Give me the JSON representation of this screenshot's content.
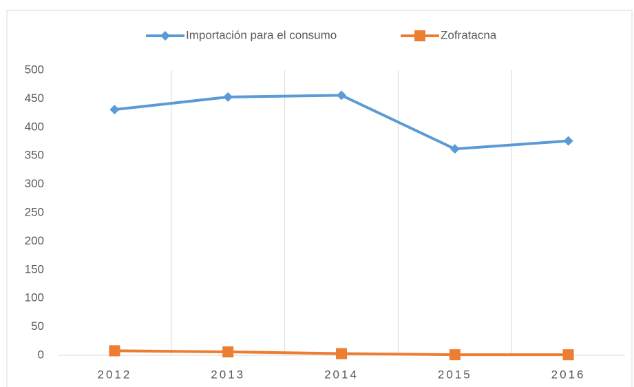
{
  "chart_data": {
    "type": "line",
    "categories": [
      "2012",
      "2013",
      "2014",
      "2015",
      "2016"
    ],
    "series": [
      {
        "name": "Importación para el consumo",
        "color": "#5b9bd5",
        "marker": "diamond",
        "values": [
          431,
          453,
          456,
          362,
          376
        ]
      },
      {
        "name": "Zofratacna",
        "color": "#ed7d31",
        "marker": "square",
        "values": [
          8,
          6,
          3,
          1,
          1
        ]
      }
    ],
    "ylim": [
      0,
      500
    ],
    "yticks": [
      0,
      50,
      100,
      150,
      200,
      250,
      300,
      350,
      400,
      450,
      500
    ],
    "grid": true,
    "legend": "top"
  }
}
